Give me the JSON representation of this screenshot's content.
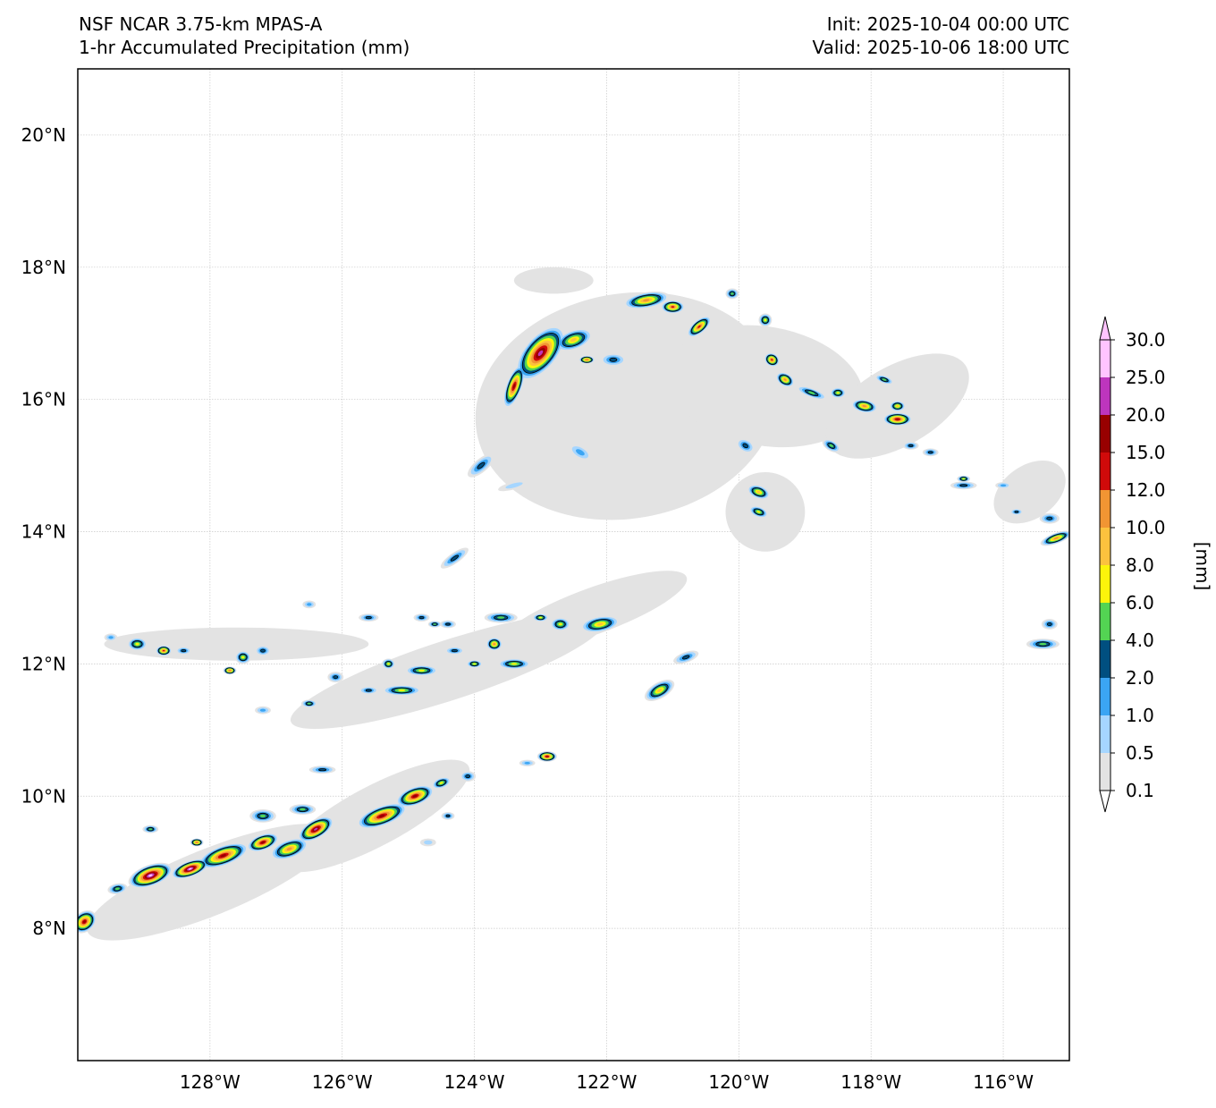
{
  "header": {
    "model": "NSF NCAR 3.75-km MPAS-A",
    "field": "1-hr Accumulated Precipitation (mm)",
    "init": "Init: 2025-10-04 00:00 UTC",
    "valid": "Valid: 2025-10-06 18:00 UTC"
  },
  "map": {
    "lon_range": [
      -130,
      -115
    ],
    "lat_range": [
      6,
      21
    ],
    "lon_ticks": [
      {
        "value": -128,
        "label": "128°W"
      },
      {
        "value": -126,
        "label": "126°W"
      },
      {
        "value": -124,
        "label": "124°W"
      },
      {
        "value": -122,
        "label": "122°W"
      },
      {
        "value": -120,
        "label": "120°W"
      },
      {
        "value": -118,
        "label": "118°W"
      },
      {
        "value": -116,
        "label": "116°W"
      }
    ],
    "lat_ticks": [
      {
        "value": 8,
        "label": "8°N"
      },
      {
        "value": 10,
        "label": "10°N"
      },
      {
        "value": 12,
        "label": "12°N"
      },
      {
        "value": 14,
        "label": "14°N"
      },
      {
        "value": 16,
        "label": "16°N"
      },
      {
        "value": 18,
        "label": "18°N"
      },
      {
        "value": 20,
        "label": "20°N"
      }
    ],
    "gridlines": true
  },
  "colorbar": {
    "unit_label": "[mm]",
    "levels": [
      "0.1",
      "0.5",
      "1.0",
      "2.0",
      "4.0",
      "6.0",
      "8.0",
      "10.0",
      "12.0",
      "15.0",
      "20.0",
      "25.0",
      "30.0"
    ],
    "colors": [
      "#e3e3e3",
      "#a6d6ff",
      "#3ba5f3",
      "#004f80",
      "#53d453",
      "#fdf40b",
      "#fcc23e",
      "#f19533",
      "#d00a0a",
      "#980000",
      "#bd35bd",
      "#ffc4ff"
    ],
    "under_color": "#ffffff",
    "over_color": "#ffc4ff"
  },
  "features": {
    "cyclone_center": {
      "lon": -121.6,
      "lat": 15.9
    },
    "itcz_axis": [
      {
        "lon": -130,
        "lat": 8.1
      },
      {
        "lon": -128,
        "lat": 8.8
      },
      {
        "lon": -126,
        "lat": 9.5
      },
      {
        "lon": -124.5,
        "lat": 10.2
      },
      {
        "lon": -123,
        "lat": 10.9
      }
    ]
  }
}
